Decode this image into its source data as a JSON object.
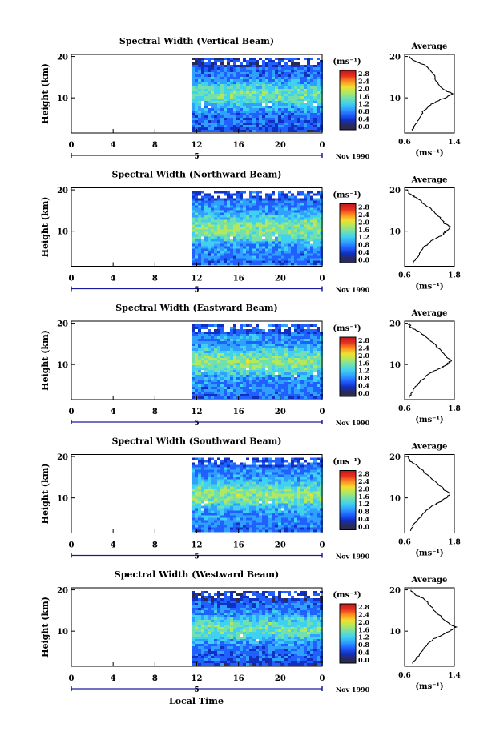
{
  "chart_data": [
    {
      "type": "heatmap",
      "title": "Spectral Width (Vertical Beam)",
      "ylabel": "Height (km)",
      "xticks": [
        "0",
        "4",
        "8",
        "12",
        "16",
        "20",
        "0"
      ],
      "yticks": [
        "10",
        "20"
      ],
      "date_label": "5",
      "month_label": "Nov 1990",
      "data_start_hour": 11.5,
      "xlim": [
        0,
        24
      ],
      "ylim": [
        1.5,
        20.5
      ],
      "colorbar": {
        "unit": "(ms⁻¹)",
        "ticks": [
          "2.8",
          "2.4",
          "2.0",
          "1.6",
          "1.2",
          "0.8",
          "0.4",
          "0.0"
        ]
      },
      "profile": {
        "title": "Average",
        "xlabel": "(ms⁻¹)",
        "xticks": [
          "0.6",
          "1.4"
        ],
        "xlim": [
          0.6,
          1.4
        ],
        "yticks": [
          "10",
          "20"
        ],
        "heights": [
          2,
          4,
          6,
          8,
          9,
          10,
          11,
          12,
          14,
          16,
          18,
          19,
          20
        ],
        "values": [
          0.72,
          0.8,
          0.86,
          0.98,
          1.1,
          1.25,
          1.37,
          1.22,
          1.12,
          1.05,
          0.92,
          0.75,
          0.68
        ]
      }
    },
    {
      "type": "heatmap",
      "title": "Spectral Width (Northward Beam)",
      "ylabel": "Height (km)",
      "xticks": [
        "0",
        "4",
        "8",
        "12",
        "16",
        "20",
        "0"
      ],
      "yticks": [
        "10",
        "20"
      ],
      "date_label": "5",
      "month_label": "Nov 1990",
      "data_start_hour": 11.5,
      "xlim": [
        0,
        24
      ],
      "ylim": [
        1.5,
        20.5
      ],
      "colorbar": {
        "unit": "(ms⁻¹)",
        "ticks": [
          "2.8",
          "2.4",
          "2.0",
          "1.6",
          "1.2",
          "0.8",
          "0.4",
          "0.0"
        ]
      },
      "profile": {
        "title": "Average",
        "xlabel": "(ms⁻¹)",
        "xticks": [
          "0.6",
          "1.8"
        ],
        "xlim": [
          0.6,
          1.8
        ],
        "yticks": [
          "10",
          "20"
        ],
        "heights": [
          2,
          4,
          6,
          8,
          9,
          10,
          11,
          12,
          14,
          16,
          18,
          19,
          20
        ],
        "values": [
          0.78,
          0.92,
          1.05,
          1.3,
          1.5,
          1.6,
          1.72,
          1.55,
          1.4,
          1.15,
          0.9,
          0.72,
          0.68
        ]
      }
    },
    {
      "type": "heatmap",
      "title": "Spectral Width (Eastward Beam)",
      "ylabel": "Height (km)",
      "xticks": [
        "0",
        "4",
        "8",
        "12",
        "16",
        "20",
        "0"
      ],
      "yticks": [
        "10",
        "20"
      ],
      "date_label": "5",
      "month_label": "Nov 1990",
      "data_start_hour": 11.5,
      "xlim": [
        0,
        24
      ],
      "ylim": [
        1.5,
        20.5
      ],
      "colorbar": {
        "unit": "(ms⁻¹)",
        "ticks": [
          "2.8",
          "2.4",
          "2.0",
          "1.6",
          "1.2",
          "0.8",
          "0.4",
          "0.0"
        ]
      },
      "profile": {
        "title": "Average",
        "xlabel": "(ms⁻¹)",
        "xticks": [
          "0.6",
          "1.8"
        ],
        "xlim": [
          0.6,
          1.8
        ],
        "yticks": [
          "10",
          "20"
        ],
        "heights": [
          2,
          4,
          6,
          8,
          9,
          10,
          11,
          12,
          14,
          16,
          18,
          19,
          20
        ],
        "values": [
          0.7,
          0.82,
          1.0,
          1.22,
          1.45,
          1.62,
          1.72,
          1.6,
          1.42,
          1.2,
          0.95,
          0.75,
          0.7
        ]
      }
    },
    {
      "type": "heatmap",
      "title": "Spectral Width (Southward Beam)",
      "ylabel": "Height (km)",
      "xticks": [
        "0",
        "4",
        "8",
        "12",
        "16",
        "20",
        "0"
      ],
      "yticks": [
        "10",
        "20"
      ],
      "date_label": "5",
      "month_label": "Nov 1990",
      "data_start_hour": 11.5,
      "xlim": [
        0,
        24
      ],
      "ylim": [
        1.5,
        20.5
      ],
      "colorbar": {
        "unit": "(ms⁻¹)",
        "ticks": [
          "2.8",
          "2.4",
          "2.0",
          "1.6",
          "1.2",
          "0.8",
          "0.4",
          "0.0"
        ]
      },
      "profile": {
        "title": "Average",
        "xlabel": "(ms⁻¹)",
        "xticks": [
          "0.6",
          "1.8"
        ],
        "xlim": [
          0.6,
          1.8
        ],
        "yticks": [
          "10",
          "20"
        ],
        "heights": [
          2,
          4,
          6,
          8,
          9,
          10,
          11,
          12,
          14,
          16,
          18,
          19,
          20
        ],
        "values": [
          0.72,
          0.85,
          1.02,
          1.25,
          1.45,
          1.6,
          1.7,
          1.55,
          1.35,
          1.1,
          0.88,
          0.72,
          0.68
        ]
      }
    },
    {
      "type": "heatmap",
      "title": "Spectral Width (Westward Beam)",
      "ylabel": "Height (km)",
      "xticks": [
        "0",
        "4",
        "8",
        "12",
        "16",
        "20",
        "0"
      ],
      "yticks": [
        "10",
        "20"
      ],
      "date_label": "5",
      "month_label": "Nov 1990",
      "data_start_hour": 11.5,
      "xlim": [
        0,
        24
      ],
      "ylim": [
        1.5,
        20.5
      ],
      "colorbar": {
        "unit": "(ms⁻¹)",
        "ticks": [
          "2.8",
          "2.4",
          "2.0",
          "1.6",
          "1.2",
          "0.8",
          "0.4",
          "0.0"
        ]
      },
      "profile": {
        "title": "Average",
        "xlabel": "(ms⁻¹)",
        "xticks": [
          "0.6",
          "1.4"
        ],
        "xlim": [
          0.6,
          1.4
        ],
        "yticks": [
          "10",
          "20"
        ],
        "heights": [
          2,
          4,
          6,
          8,
          9,
          10,
          11,
          12,
          14,
          16,
          18,
          19,
          20
        ],
        "values": [
          0.72,
          0.82,
          0.92,
          1.05,
          1.2,
          1.32,
          1.42,
          1.3,
          1.15,
          1.02,
          0.9,
          0.75,
          0.7
        ]
      }
    }
  ],
  "figure": {
    "xlabel": "Local Time"
  },
  "colors": {
    "colormap": [
      "#2a2a55",
      "#1030c0",
      "#2060ff",
      "#30a0ff",
      "#40d0f0",
      "#70e0b0",
      "#b0e860",
      "#f0e030",
      "#ff9020",
      "#e83020",
      "#c01818"
    ],
    "axis": "#000000",
    "date_marker": "#1a1aa0"
  }
}
